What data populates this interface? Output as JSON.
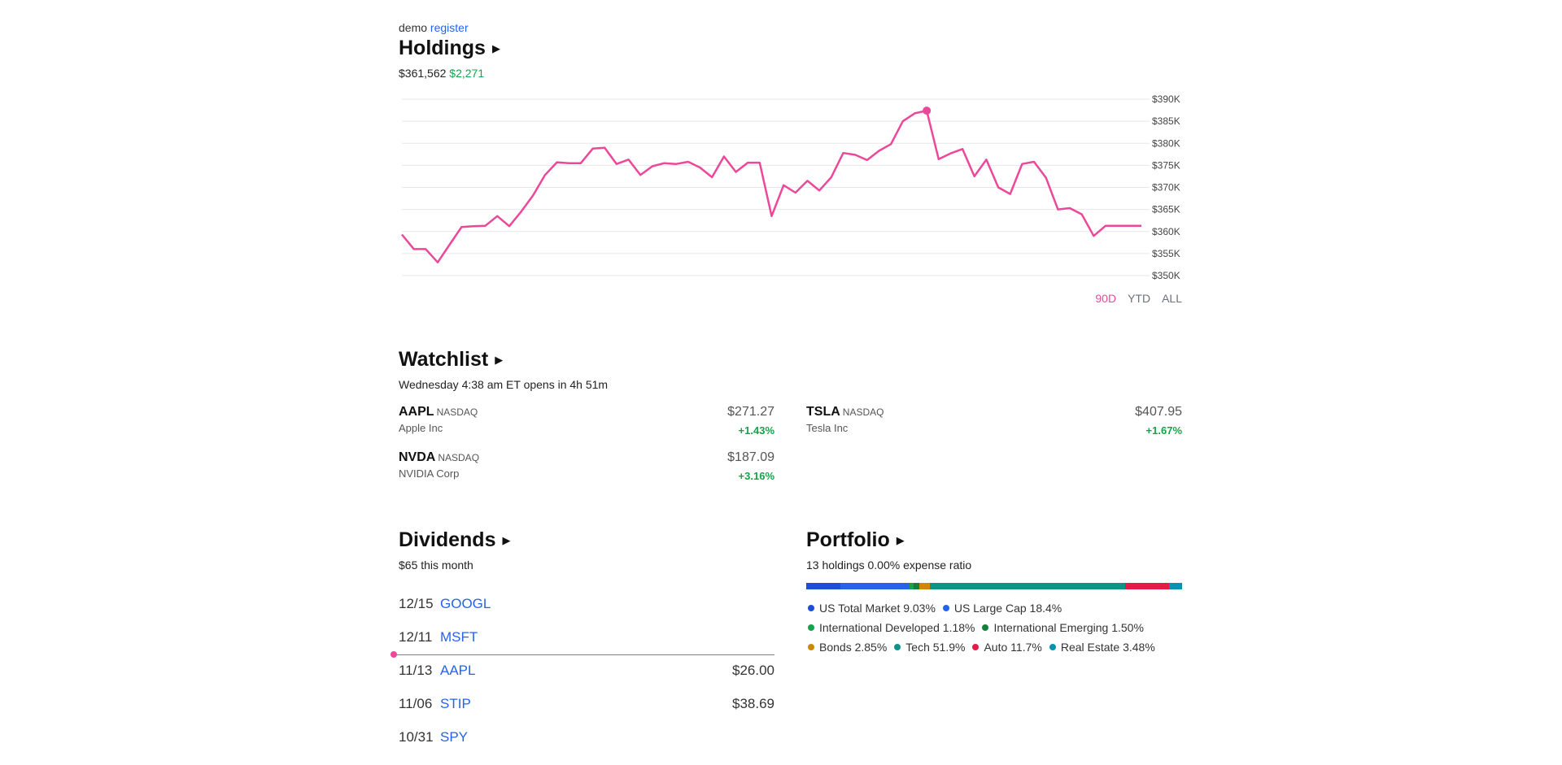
{
  "user": {
    "name": "demo",
    "register_label": "register"
  },
  "holdings": {
    "title": "Holdings",
    "arrow": "▶",
    "value": "$361,562",
    "change": "$2,271",
    "ranges": [
      "90D",
      "YTD",
      "ALL"
    ],
    "active_range": "90D"
  },
  "chart_data": {
    "type": "line",
    "title": "",
    "y_ticks": [
      "$390K",
      "$385K",
      "$380K",
      "$375K",
      "$370K",
      "$365K",
      "$360K",
      "$355K",
      "$350K"
    ],
    "ylim": [
      350000,
      390000
    ],
    "series": [
      {
        "color": "#ec4899",
        "values": [
          359300,
          356000,
          356000,
          353000,
          357000,
          361000,
          361200,
          361300,
          363500,
          361200,
          364500,
          368200,
          372800,
          375700,
          375500,
          375500,
          378800,
          379000,
          375300,
          376300,
          372800,
          374800,
          375500,
          375300,
          375800,
          374500,
          372300,
          377000,
          373500,
          375600,
          375600,
          363500,
          370500,
          368800,
          371500,
          369300,
          372300,
          377800,
          377400,
          376200,
          378300,
          379800,
          385000,
          386800,
          387400,
          376400,
          377700,
          378700,
          372500,
          376300,
          370000,
          368500,
          375300,
          375800,
          372200,
          365000,
          365300,
          363900,
          359000,
          361300,
          361300,
          361300,
          361300
        ],
        "marker_index": 44,
        "marker_value": 387400
      }
    ],
    "grid": true
  },
  "watchlist": {
    "title": "Watchlist",
    "arrow": "▶",
    "status": "Wednesday 4:38 am ET opens in 4h 51m",
    "items": [
      {
        "symbol": "AAPL",
        "exchange": "NASDAQ",
        "name": "Apple Inc",
        "price": "$271.27",
        "change": "+1.43%"
      },
      {
        "symbol": "TSLA",
        "exchange": "NASDAQ",
        "name": "Tesla Inc",
        "price": "$407.95",
        "change": "+1.67%"
      },
      {
        "symbol": "NVDA",
        "exchange": "NASDAQ",
        "name": "NVIDIA Corp",
        "price": "$187.09",
        "change": "+3.16%"
      }
    ]
  },
  "dividends": {
    "title": "Dividends",
    "arrow": "▶",
    "summary": "$65 this month",
    "rows": [
      {
        "date": "12/15",
        "symbol": "GOOGL",
        "amount": ""
      },
      {
        "date": "12/11",
        "symbol": "MSFT",
        "amount": ""
      },
      {
        "date": "11/13",
        "symbol": "AAPL",
        "amount": "$26.00"
      },
      {
        "date": "11/06",
        "symbol": "STIP",
        "amount": "$38.69"
      },
      {
        "date": "10/31",
        "symbol": "SPY",
        "amount": ""
      }
    ]
  },
  "portfolio": {
    "title": "Portfolio",
    "arrow": "▶",
    "summary": "13 holdings 0.00% expense ratio",
    "allocations": [
      {
        "label": "US Total Market 9.03%",
        "pct": 9.03,
        "color": "#1d4ed8"
      },
      {
        "label": "US Large Cap 18.4%",
        "pct": 18.4,
        "color": "#2563eb"
      },
      {
        "label": "International Developed 1.18%",
        "pct": 1.18,
        "color": "#16a34a"
      },
      {
        "label": "International Emerging 1.50%",
        "pct": 1.5,
        "color": "#15803d"
      },
      {
        "label": "Bonds 2.85%",
        "pct": 2.85,
        "color": "#ca8a04"
      },
      {
        "label": "Tech 51.9%",
        "pct": 51.9,
        "color": "#0d9488"
      },
      {
        "label": "Auto 11.7%",
        "pct": 11.7,
        "color": "#e11d48"
      },
      {
        "label": "Real Estate 3.48%",
        "pct": 3.48,
        "color": "#0891b2"
      }
    ]
  }
}
